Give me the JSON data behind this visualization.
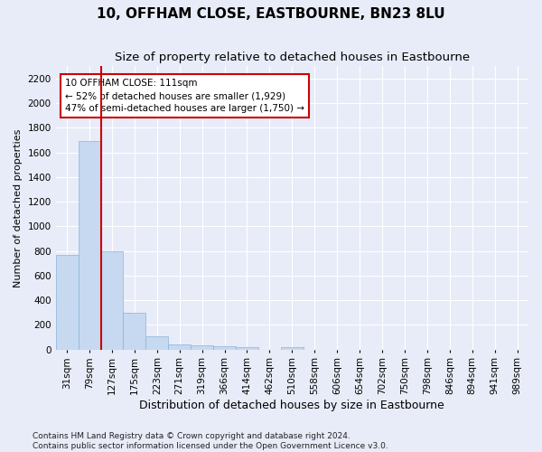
{
  "title": "10, OFFHAM CLOSE, EASTBOURNE, BN23 8LU",
  "subtitle": "Size of property relative to detached houses in Eastbourne",
  "xlabel": "Distribution of detached houses by size in Eastbourne",
  "ylabel": "Number of detached properties",
  "bar_values": [
    770,
    1690,
    800,
    300,
    110,
    45,
    32,
    25,
    22,
    0,
    20,
    0,
    0,
    0,
    0,
    0,
    0,
    0,
    0,
    0,
    0
  ],
  "bar_labels": [
    "31sqm",
    "79sqm",
    "127sqm",
    "175sqm",
    "223sqm",
    "271sqm",
    "319sqm",
    "366sqm",
    "414sqm",
    "462sqm",
    "510sqm",
    "558sqm",
    "606sqm",
    "654sqm",
    "702sqm",
    "750sqm",
    "798sqm",
    "846sqm",
    "894sqm",
    "941sqm",
    "989sqm"
  ],
  "bar_color": "#c6d9f0",
  "bar_edge_color": "#8ab4d8",
  "background_color": "#e8ecf8",
  "grid_color": "#ffffff",
  "vline_color": "#cc0000",
  "annotation_text": "10 OFFHAM CLOSE: 111sqm\n← 52% of detached houses are smaller (1,929)\n47% of semi-detached houses are larger (1,750) →",
  "annotation_box_facecolor": "#ffffff",
  "annotation_box_edgecolor": "#cc0000",
  "ylim": [
    0,
    2300
  ],
  "yticks": [
    0,
    200,
    400,
    600,
    800,
    1000,
    1200,
    1400,
    1600,
    1800,
    2000,
    2200
  ],
  "footer_text": "Contains HM Land Registry data © Crown copyright and database right 2024.\nContains public sector information licensed under the Open Government Licence v3.0.",
  "title_fontsize": 11,
  "subtitle_fontsize": 9.5,
  "xlabel_fontsize": 9,
  "ylabel_fontsize": 8,
  "tick_fontsize": 7.5,
  "footer_fontsize": 6.5,
  "vline_x_index": 1.5
}
